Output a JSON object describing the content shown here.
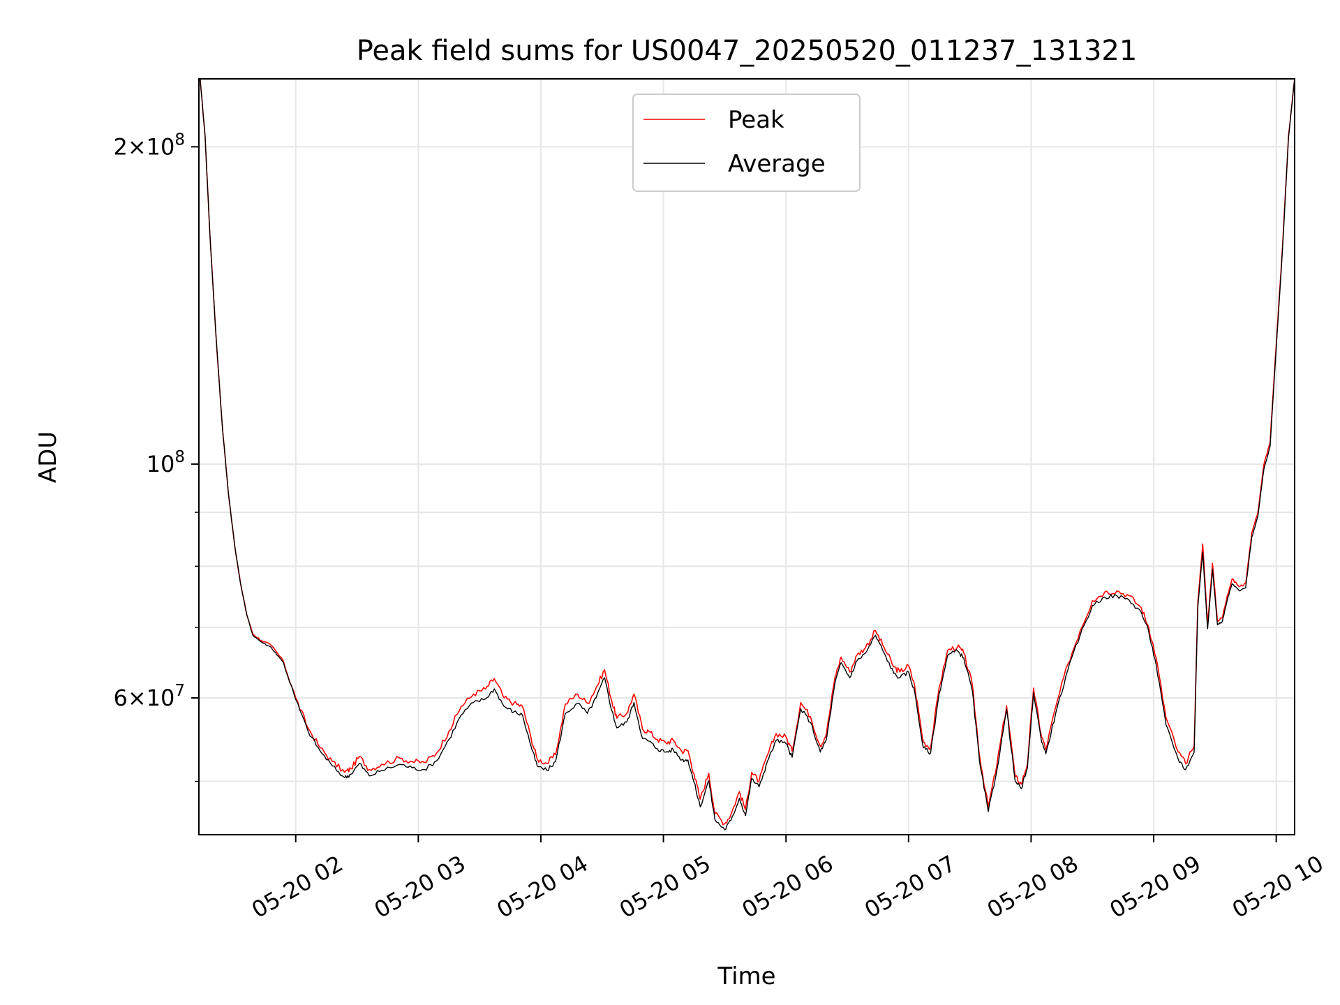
{
  "chart_data": {
    "type": "line",
    "title": "Peak field sums for US0047_20250520_011237_131321",
    "xlabel": "Time",
    "ylabel": "ADU",
    "y_scale": "log",
    "x_unit": "hours",
    "xlim": [
      1.21,
      10.15
    ],
    "ylim": [
      44500000,
      232000000
    ],
    "x_ticks": [
      {
        "value": 2,
        "label": "05-20 02"
      },
      {
        "value": 3,
        "label": "05-20 03"
      },
      {
        "value": 4,
        "label": "05-20 04"
      },
      {
        "value": 5,
        "label": "05-20 05"
      },
      {
        "value": 6,
        "label": "05-20 06"
      },
      {
        "value": 7,
        "label": "05-20 07"
      },
      {
        "value": 8,
        "label": "05-20 08"
      },
      {
        "value": 9,
        "label": "05-20 09"
      },
      {
        "value": 10,
        "label": "05-20 10"
      }
    ],
    "y_ticks_major": [
      {
        "value": 60000000,
        "base": "6×10",
        "exp": "7"
      },
      {
        "value": 100000000,
        "base": "10",
        "exp": "8"
      },
      {
        "value": 200000000,
        "base": "2×10",
        "exp": "8"
      }
    ],
    "y_ticks_minor": [
      50000000,
      70000000,
      80000000,
      90000000
    ],
    "grid": true,
    "legend": {
      "position": "upper-center"
    },
    "series": [
      {
        "name": "Peak",
        "color": "#ff0000",
        "points": [
          [
            1.22,
            232000000
          ],
          [
            1.26,
            205000000
          ],
          [
            1.3,
            165000000
          ],
          [
            1.35,
            132000000
          ],
          [
            1.4,
            109000000
          ],
          [
            1.45,
            94000000
          ],
          [
            1.5,
            84000000
          ],
          [
            1.55,
            77000000
          ],
          [
            1.6,
            72000000
          ],
          [
            1.65,
            69000000
          ],
          [
            1.72,
            68000000
          ],
          [
            1.8,
            67300000
          ],
          [
            1.9,
            65000000
          ],
          [
            2.0,
            60000000
          ],
          [
            2.1,
            56200000
          ],
          [
            2.2,
            53800000
          ],
          [
            2.3,
            52200000
          ],
          [
            2.4,
            51000000
          ],
          [
            2.45,
            51400000
          ],
          [
            2.52,
            52800000
          ],
          [
            2.6,
            51300000
          ],
          [
            2.7,
            51900000
          ],
          [
            2.85,
            52600000
          ],
          [
            2.95,
            52200000
          ],
          [
            3.05,
            52100000
          ],
          [
            3.15,
            53200000
          ],
          [
            3.25,
            55800000
          ],
          [
            3.35,
            58900000
          ],
          [
            3.45,
            60500000
          ],
          [
            3.55,
            61200000
          ],
          [
            3.62,
            62600000
          ],
          [
            3.7,
            60000000
          ],
          [
            3.78,
            59300000
          ],
          [
            3.85,
            58900000
          ],
          [
            3.92,
            55000000
          ],
          [
            3.97,
            52500000
          ],
          [
            4.05,
            52000000
          ],
          [
            4.12,
            53000000
          ],
          [
            4.2,
            59200000
          ],
          [
            4.3,
            60500000
          ],
          [
            4.38,
            59300000
          ],
          [
            4.45,
            61300000
          ],
          [
            4.52,
            63800000
          ],
          [
            4.58,
            59500000
          ],
          [
            4.62,
            57400000
          ],
          [
            4.7,
            58000000
          ],
          [
            4.76,
            60500000
          ],
          [
            4.83,
            56000000
          ],
          [
            4.88,
            55800000
          ],
          [
            4.95,
            54800000
          ],
          [
            5.02,
            54400000
          ],
          [
            5.08,
            54700000
          ],
          [
            5.15,
            53400000
          ],
          [
            5.2,
            53500000
          ],
          [
            5.25,
            50800000
          ],
          [
            5.3,
            48100000
          ],
          [
            5.37,
            50900000
          ],
          [
            5.42,
            46600000
          ],
          [
            5.5,
            45600000
          ],
          [
            5.55,
            46500000
          ],
          [
            5.62,
            48900000
          ],
          [
            5.67,
            47000000
          ],
          [
            5.72,
            51000000
          ],
          [
            5.78,
            50000000
          ],
          [
            5.85,
            53000000
          ],
          [
            5.92,
            55500000
          ],
          [
            6.0,
            55100000
          ],
          [
            6.05,
            53400000
          ],
          [
            6.12,
            59400000
          ],
          [
            6.2,
            57600000
          ],
          [
            6.28,
            54000000
          ],
          [
            6.33,
            55500000
          ],
          [
            6.4,
            62800000
          ],
          [
            6.45,
            65600000
          ],
          [
            6.52,
            63500000
          ],
          [
            6.58,
            65900000
          ],
          [
            6.65,
            67000000
          ],
          [
            6.73,
            69500000
          ],
          [
            6.8,
            67000000
          ],
          [
            6.88,
            64200000
          ],
          [
            6.93,
            63500000
          ],
          [
            7.0,
            64400000
          ],
          [
            7.05,
            61600000
          ],
          [
            7.12,
            54500000
          ],
          [
            7.18,
            53800000
          ],
          [
            7.25,
            61400000
          ],
          [
            7.32,
            66600000
          ],
          [
            7.4,
            67100000
          ],
          [
            7.45,
            66200000
          ],
          [
            7.52,
            61800000
          ],
          [
            7.58,
            52800000
          ],
          [
            7.65,
            47300000
          ],
          [
            7.72,
            51800000
          ],
          [
            7.8,
            59000000
          ],
          [
            7.87,
            50500000
          ],
          [
            7.92,
            49700000
          ],
          [
            7.97,
            52000000
          ],
          [
            8.02,
            61300000
          ],
          [
            8.08,
            55500000
          ],
          [
            8.12,
            53600000
          ],
          [
            8.2,
            58800000
          ],
          [
            8.3,
            64600000
          ],
          [
            8.4,
            69500000
          ],
          [
            8.5,
            74200000
          ],
          [
            8.6,
            75600000
          ],
          [
            8.7,
            75800000
          ],
          [
            8.8,
            75000000
          ],
          [
            8.9,
            73000000
          ],
          [
            8.96,
            70000000
          ],
          [
            9.02,
            65500000
          ],
          [
            9.1,
            57500000
          ],
          [
            9.2,
            53300000
          ],
          [
            9.26,
            52000000
          ],
          [
            9.33,
            54000000
          ],
          [
            9.36,
            74000000
          ],
          [
            9.4,
            84000000
          ],
          [
            9.44,
            70500000
          ],
          [
            9.48,
            80500000
          ],
          [
            9.52,
            71000000
          ],
          [
            9.56,
            71500000
          ],
          [
            9.6,
            75000000
          ],
          [
            9.64,
            77800000
          ],
          [
            9.7,
            76500000
          ],
          [
            9.75,
            77000000
          ],
          [
            9.8,
            86000000
          ],
          [
            9.85,
            90000000
          ],
          [
            9.9,
            100000000
          ],
          [
            9.95,
            105000000
          ],
          [
            10.0,
            130000000
          ],
          [
            10.05,
            160000000
          ],
          [
            10.1,
            205000000
          ],
          [
            10.15,
            232000000
          ]
        ]
      },
      {
        "name": "Average",
        "color": "#000000",
        "points": [
          [
            1.22,
            232000000
          ],
          [
            1.26,
            205000000
          ],
          [
            1.3,
            165000000
          ],
          [
            1.35,
            132000000
          ],
          [
            1.4,
            109000000
          ],
          [
            1.45,
            94000000
          ],
          [
            1.5,
            84000000
          ],
          [
            1.55,
            77000000
          ],
          [
            1.6,
            72000000
          ],
          [
            1.65,
            68800000
          ],
          [
            1.72,
            67800000
          ],
          [
            1.8,
            67000000
          ],
          [
            1.9,
            64800000
          ],
          [
            2.0,
            59800000
          ],
          [
            2.1,
            55800000
          ],
          [
            2.2,
            53400000
          ],
          [
            2.3,
            51700000
          ],
          [
            2.4,
            50400000
          ],
          [
            2.45,
            50800000
          ],
          [
            2.52,
            52000000
          ],
          [
            2.6,
            50600000
          ],
          [
            2.7,
            51200000
          ],
          [
            2.85,
            51900000
          ],
          [
            2.95,
            51500000
          ],
          [
            3.05,
            51300000
          ],
          [
            3.15,
            52300000
          ],
          [
            3.25,
            54800000
          ],
          [
            3.35,
            57800000
          ],
          [
            3.45,
            59400000
          ],
          [
            3.55,
            59900000
          ],
          [
            3.62,
            61200000
          ],
          [
            3.7,
            58900000
          ],
          [
            3.78,
            58200000
          ],
          [
            3.85,
            57800000
          ],
          [
            3.92,
            54000000
          ],
          [
            3.97,
            51700000
          ],
          [
            4.05,
            51200000
          ],
          [
            4.12,
            52200000
          ],
          [
            4.2,
            58000000
          ],
          [
            4.3,
            59300000
          ],
          [
            4.38,
            58000000
          ],
          [
            4.45,
            60000000
          ],
          [
            4.52,
            62700000
          ],
          [
            4.58,
            58300000
          ],
          [
            4.62,
            56200000
          ],
          [
            4.7,
            56900000
          ],
          [
            4.76,
            59400000
          ],
          [
            4.83,
            54900000
          ],
          [
            4.88,
            54600000
          ],
          [
            4.95,
            53700000
          ],
          [
            5.02,
            53300000
          ],
          [
            5.08,
            53600000
          ],
          [
            5.15,
            52400000
          ],
          [
            5.2,
            52400000
          ],
          [
            5.25,
            49900000
          ],
          [
            5.3,
            47300000
          ],
          [
            5.37,
            50100000
          ],
          [
            5.42,
            46000000
          ],
          [
            5.5,
            45000000
          ],
          [
            5.55,
            45900000
          ],
          [
            5.62,
            48200000
          ],
          [
            5.67,
            46400000
          ],
          [
            5.72,
            50300000
          ],
          [
            5.78,
            49400000
          ],
          [
            5.85,
            52300000
          ],
          [
            5.92,
            54700000
          ],
          [
            6.0,
            54300000
          ],
          [
            6.05,
            52700000
          ],
          [
            6.12,
            58600000
          ],
          [
            6.2,
            56900000
          ],
          [
            6.28,
            53300000
          ],
          [
            6.33,
            54800000
          ],
          [
            6.4,
            62000000
          ],
          [
            6.45,
            64800000
          ],
          [
            6.52,
            62700000
          ],
          [
            6.58,
            65100000
          ],
          [
            6.65,
            66200000
          ],
          [
            6.73,
            68800000
          ],
          [
            6.8,
            66200000
          ],
          [
            6.88,
            63300000
          ],
          [
            6.93,
            62700000
          ],
          [
            7.0,
            63500000
          ],
          [
            7.05,
            60800000
          ],
          [
            7.12,
            53800000
          ],
          [
            7.18,
            53200000
          ],
          [
            7.25,
            60600000
          ],
          [
            7.32,
            65900000
          ],
          [
            7.4,
            66500000
          ],
          [
            7.45,
            65500000
          ],
          [
            7.52,
            61000000
          ],
          [
            7.58,
            52100000
          ],
          [
            7.65,
            46800000
          ],
          [
            7.72,
            51200000
          ],
          [
            7.8,
            58500000
          ],
          [
            7.87,
            50000000
          ],
          [
            7.92,
            49200000
          ],
          [
            7.97,
            51500000
          ],
          [
            8.02,
            60700000
          ],
          [
            8.08,
            55000000
          ],
          [
            8.12,
            53100000
          ],
          [
            8.2,
            58000000
          ],
          [
            8.3,
            63800000
          ],
          [
            8.4,
            68800000
          ],
          [
            8.5,
            73400000
          ],
          [
            8.6,
            74800000
          ],
          [
            8.7,
            75000000
          ],
          [
            8.8,
            74300000
          ],
          [
            8.9,
            72300000
          ],
          [
            8.96,
            69300000
          ],
          [
            9.02,
            64500000
          ],
          [
            9.1,
            56600000
          ],
          [
            9.2,
            52500000
          ],
          [
            9.26,
            51300000
          ],
          [
            9.33,
            53300000
          ],
          [
            9.36,
            73200000
          ],
          [
            9.4,
            82500000
          ],
          [
            9.44,
            69800000
          ],
          [
            9.48,
            79500000
          ],
          [
            9.52,
            70400000
          ],
          [
            9.56,
            70900000
          ],
          [
            9.6,
            74300000
          ],
          [
            9.64,
            77000000
          ],
          [
            9.7,
            75800000
          ],
          [
            9.75,
            76300000
          ],
          [
            9.8,
            85200000
          ],
          [
            9.85,
            89200000
          ],
          [
            9.9,
            99000000
          ],
          [
            9.95,
            104000000
          ],
          [
            10.0,
            129000000
          ],
          [
            10.05,
            159000000
          ],
          [
            10.1,
            204000000
          ],
          [
            10.15,
            232000000
          ]
        ]
      }
    ]
  }
}
